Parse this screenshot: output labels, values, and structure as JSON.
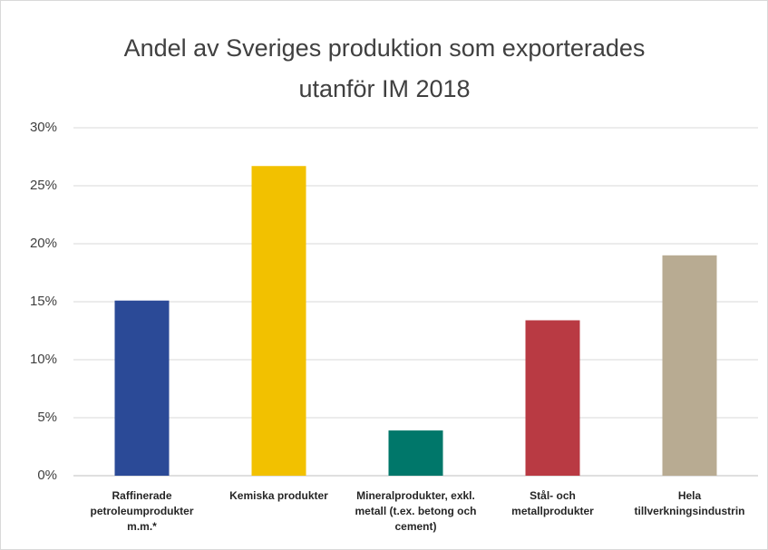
{
  "chart_data": {
    "type": "bar",
    "title": "Andel av Sveriges produktion som exporterades utanför IM 2018",
    "categories": [
      "Raffinerade petroleumprodukter m.m.*",
      "Kemiska produkter",
      "Mineralprodukter, exkl. metall (t.ex. betong och cement)",
      "Stål- och metallprodukter",
      "Hela tillverkningsindustrin"
    ],
    "values": [
      15.1,
      26.7,
      3.9,
      13.4,
      19.0
    ],
    "colors": [
      "#2b4a97",
      "#f2c100",
      "#00776a",
      "#b93a43",
      "#b8ab92"
    ],
    "ylim": [
      0,
      30
    ],
    "yticks": [
      {
        "value": 0,
        "label": "0%"
      },
      {
        "value": 5,
        "label": "5%"
      },
      {
        "value": 10,
        "label": "10%"
      },
      {
        "value": 15,
        "label": "15%"
      },
      {
        "value": 20,
        "label": "20%"
      },
      {
        "value": 25,
        "label": "25%"
      },
      {
        "value": 30,
        "label": "30%"
      }
    ],
    "grid": true
  }
}
